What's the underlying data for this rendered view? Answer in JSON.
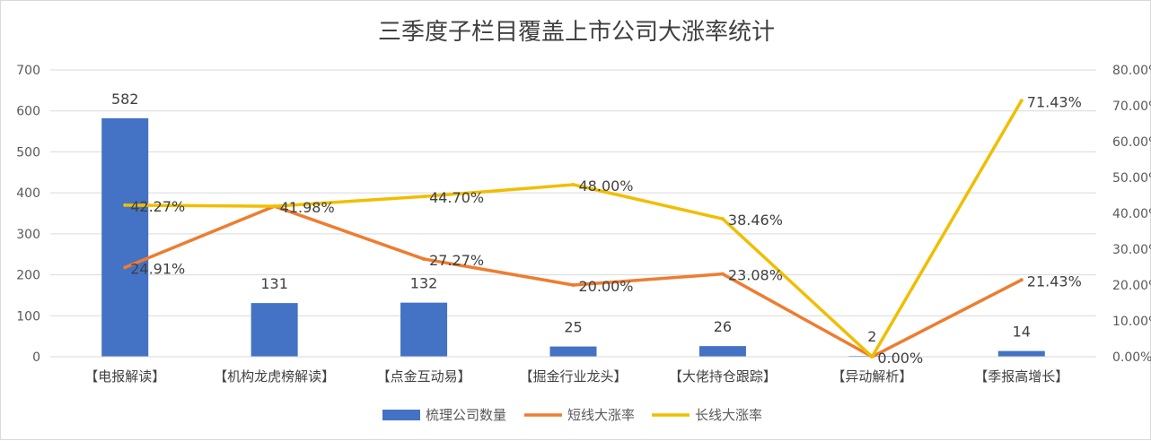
{
  "chart_data": {
    "type": "bar",
    "title": "三季度子栏目覆盖上市公司大涨率统计",
    "categories": [
      "【电报解读】",
      "【机构龙虎榜解读】",
      "【点金互动易】",
      "【掘金行业龙头】",
      "【大佬持仓跟踪】",
      "【异动解析】",
      "【季报高增长】"
    ],
    "series": [
      {
        "name": "梳理公司数量",
        "type": "bar",
        "axis": "left",
        "color": "#4472C4",
        "values": [
          582,
          131,
          132,
          25,
          26,
          2,
          14
        ],
        "labels": [
          "582",
          "131",
          "132",
          "25",
          "26",
          "2",
          "14"
        ]
      },
      {
        "name": "短线大涨率",
        "type": "line",
        "axis": "right",
        "color": "#ED7D31",
        "values": [
          24.91,
          41.98,
          27.27,
          20.0,
          23.08,
          0.0,
          21.43
        ],
        "labels": [
          "24.91%",
          "41.98%",
          "27.27%",
          "20.00%",
          "23.08%",
          "0.00%",
          "21.43%"
        ]
      },
      {
        "name": "长线大涨率",
        "type": "line",
        "axis": "right",
        "color": "#F0BE00",
        "values": [
          42.27,
          41.98,
          44.7,
          48.0,
          38.46,
          0.0,
          71.43
        ],
        "labels": [
          "42.27%",
          "",
          "44.70%",
          "48.00%",
          "38.46%",
          "",
          "71.43%"
        ]
      }
    ],
    "left_axis": {
      "min": 0,
      "max": 700,
      "ticks": [
        "0",
        "100",
        "200",
        "300",
        "400",
        "500",
        "600",
        "700"
      ]
    },
    "right_axis": {
      "min": 0,
      "max": 80,
      "ticks": [
        "0.00%",
        "10.00%",
        "20.00%",
        "30.00%",
        "40.00%",
        "50.00%",
        "60.00%",
        "70.00%",
        "80.00%"
      ]
    },
    "grid": true,
    "legend_position": "bottom"
  }
}
